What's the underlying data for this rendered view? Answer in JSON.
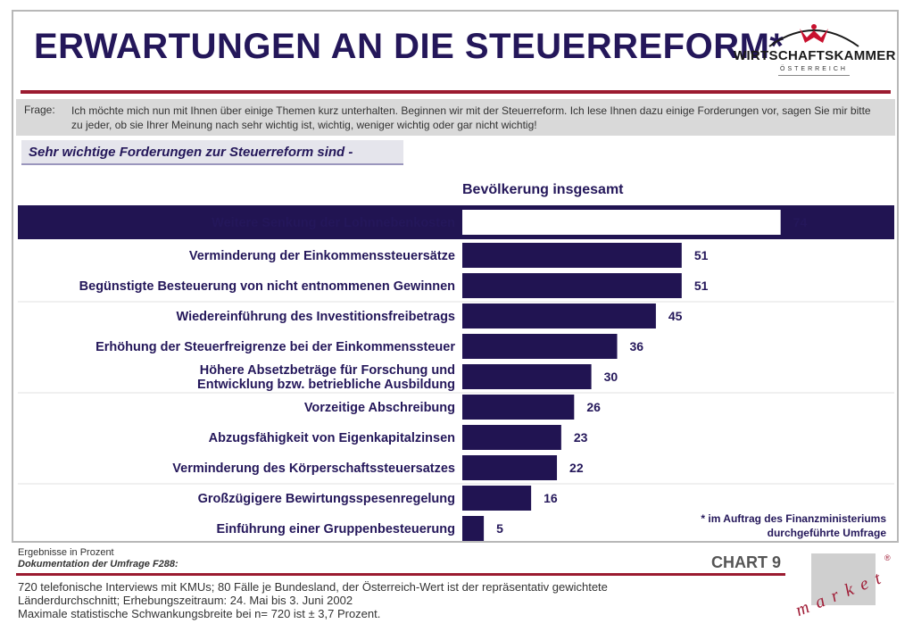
{
  "title": "ERWARTUNGEN AN DIE STEUERREFORM*",
  "logo": {
    "name": "WIRTSCHAFTSKAMMER",
    "sub": "ÖSTERREICH"
  },
  "question": {
    "label": "Frage:",
    "text": "Ich möchte mich nun mit Ihnen über einige Themen kurz unterhalten. Beginnen wir mit der Steuerreform. Ich lese Ihnen dazu einige Forderungen vor, sagen Sie mir bitte zu jeder, ob sie Ihrer Meinung nach sehr wichtig ist, wichtig, weniger wichtig oder gar nicht wichtig!"
  },
  "subtitle": "Sehr wichtige Forderungen zur Steuerreform sind -",
  "chart_data": {
    "type": "bar",
    "orientation": "horizontal",
    "series": [
      {
        "name": "Bevölkerung insgesamt",
        "values": [
          74,
          51,
          51,
          45,
          36,
          30,
          26,
          23,
          22,
          16,
          5
        ]
      }
    ],
    "categories": [
      "Weitere Senkung der Lohnnebenkosten",
      "Verminderung der Einkommenssteuersätze",
      "Begünstigte Besteuerung von nicht entnommenen Gewinnen",
      "Wiedereinführung des Investitionsfreibetrags",
      "Erhöhung der Steuerfreigrenze bei der Einkommenssteuer",
      "Höhere Absetzbeträge für Forschung und Entwicklung bzw. betriebliche Ausbildung",
      "Vorzeitige Abschreibung",
      "Abzugsfähigkeit von Eigenkapitalzinsen",
      "Verminderung des Körperschaftssteuersatzes",
      "Großzügigere Bewirtungsspesenregelung",
      "Einführung einer Gruppenbesteuerung"
    ],
    "highlighted_category_index": 0,
    "xlim": [
      0,
      100
    ],
    "unit": "Prozent",
    "colors": {
      "bar": "#211452",
      "highlight_bar": "#ffffff",
      "highlight_band": "#211452",
      "text": "#24175a"
    }
  },
  "footnote": {
    "line1": "*  im Auftrag des Finanzministeriums",
    "line2": "durchgeführte Umfrage"
  },
  "footer": {
    "results_note": "Ergebnisse in Prozent",
    "doc_label": "Dokumentation der Umfrage F288:",
    "chart_number": "CHART 9",
    "method_lines": [
      "720 telefonische Interviews mit KMUs; 80 Fälle je Bundesland, der Österreich-Wert ist der repräsentativ gewichtete",
      "Länderdurchschnitt; Erhebungszeitraum:  24. Mai bis 3. Juni 2002",
      "Maximale statistische Schwankungsbreite bei n= 720 ist ± 3,7 Prozent."
    ],
    "brand": "market",
    "brand_mark": "®"
  }
}
